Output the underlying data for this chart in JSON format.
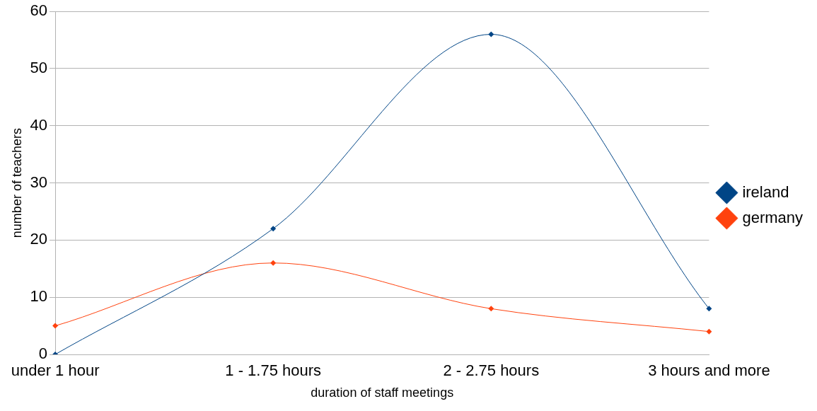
{
  "chart_data": {
    "type": "line",
    "xlabel": "duration of staff meetings",
    "ylabel": "number of teachers",
    "categories": [
      "under 1 hour",
      "1 - 1.75 hours",
      "2 - 2.75 hours",
      "3 hours and more"
    ],
    "series": [
      {
        "name": "ireland",
        "color": "#004586",
        "values": [
          0,
          22,
          56,
          8
        ]
      },
      {
        "name": "germany",
        "color": "#ff420e",
        "values": [
          5,
          16,
          8,
          4
        ]
      }
    ],
    "ylim": [
      0,
      60
    ],
    "yticks": [
      0,
      10,
      20,
      30,
      40,
      50,
      60
    ],
    "grid": "y",
    "legend": "right",
    "marker": "diamond",
    "line_style": "solid"
  }
}
